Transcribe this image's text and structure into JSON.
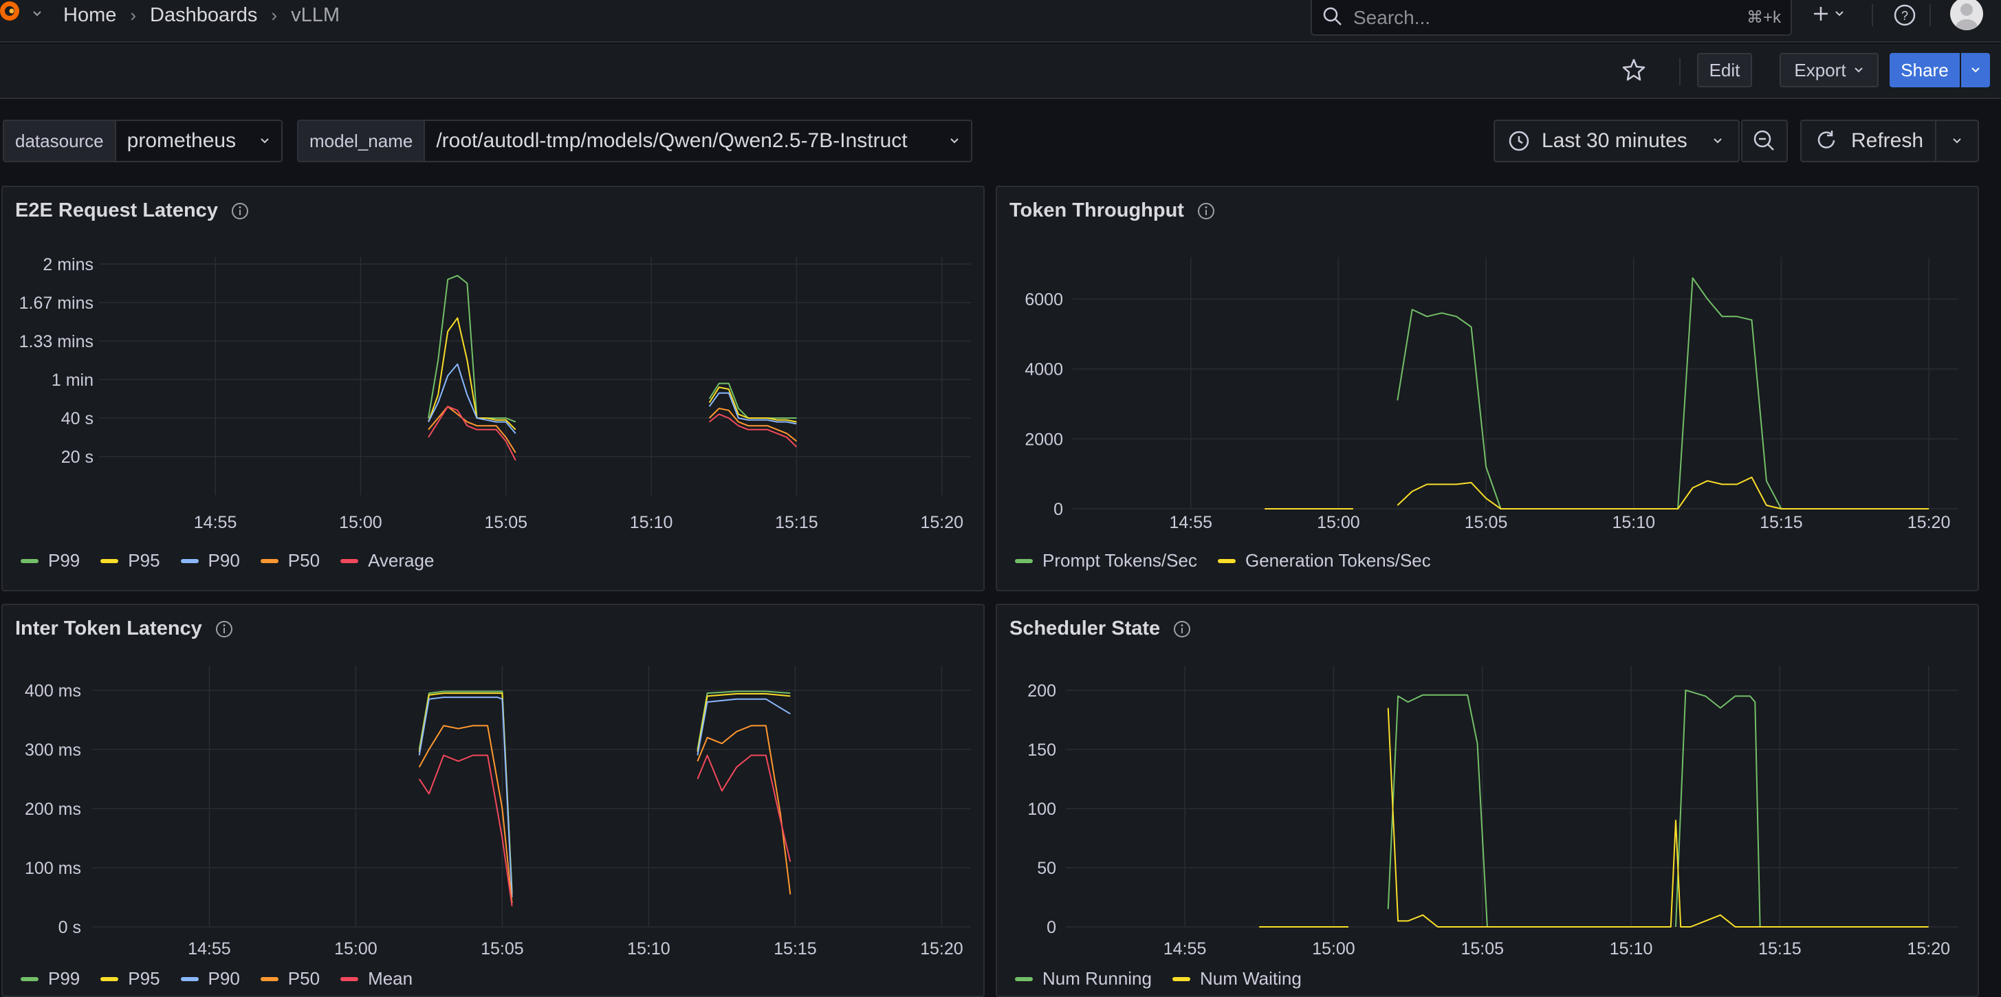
{
  "nav": {
    "breadcrumbs": [
      "Home",
      "Dashboards",
      "vLLM"
    ],
    "search_placeholder": "Search...",
    "search_shortcut": "⌘+k"
  },
  "toolbar": {
    "edit": "Edit",
    "export": "Export",
    "share": "Share"
  },
  "variables": [
    {
      "label": "datasource",
      "value": "prometheus"
    },
    {
      "label": "model_name",
      "value": "/root/autodl-tmp/models/Qwen/Qwen2.5-7B-Instruct"
    }
  ],
  "timepicker": {
    "range": "Last 30 minutes",
    "refresh": "Refresh"
  },
  "colors": {
    "green": "#73bf69",
    "yellow": "#fade2a",
    "blue": "#8ab8ff",
    "orange": "#ff9830",
    "red": "#f2495c",
    "accent": "#3d71d9"
  },
  "panels": [
    {
      "title": "E2E Request Latency",
      "legend": [
        "P99",
        "P95",
        "P90",
        "P50",
        "Average"
      ]
    },
    {
      "title": "Token Throughput",
      "legend": [
        "Prompt Tokens/Sec",
        "Generation Tokens/Sec"
      ]
    },
    {
      "title": "Inter Token Latency",
      "legend": [
        "P99",
        "P95",
        "P90",
        "P50",
        "Mean"
      ]
    },
    {
      "title": "Scheduler State",
      "legend": [
        "Num Running",
        "Num Waiting"
      ]
    }
  ],
  "chart_data": [
    {
      "type": "line",
      "title": "E2E Request Latency",
      "unit": "seconds",
      "x_ticks": [
        "14:55",
        "15:00",
        "15:05",
        "15:10",
        "15:15",
        "15:20"
      ],
      "y_tick_labels": [
        "20 s",
        "40 s",
        "1 min",
        "1.33 mins",
        "1.67 mins",
        "2 mins"
      ],
      "ylim": [
        0,
        120
      ],
      "series": [
        {
          "name": "P99",
          "color": "#73bf69",
          "x": [
            "15:02:20",
            "15:02:40",
            "15:03:00",
            "15:03:20",
            "15:03:40",
            "15:04:00",
            "15:04:20",
            "15:04:40",
            "15:05:00",
            "15:05:20",
            null,
            "15:12:00",
            "15:12:20",
            "15:12:40",
            "15:13:00",
            "15:13:20",
            "15:13:40",
            "15:14:00",
            "15:14:20",
            "15:14:40",
            "15:15:00"
          ],
          "y": [
            40,
            70,
            112,
            114,
            110,
            40,
            40,
            40,
            40,
            38,
            null,
            50,
            58,
            58,
            45,
            40,
            40,
            40,
            40,
            40,
            40
          ]
        },
        {
          "name": "P95",
          "color": "#fade2a",
          "x": [
            "15:02:20",
            "15:02:40",
            "15:03:00",
            "15:03:20",
            "15:03:40",
            "15:04:00",
            "15:04:20",
            "15:04:40",
            "15:05:00",
            "15:05:20",
            null,
            "15:12:00",
            "15:12:20",
            "15:12:40",
            "15:13:00",
            "15:13:20",
            "15:13:40",
            "15:14:00",
            "15:14:20",
            "15:14:40",
            "15:15:00"
          ],
          "y": [
            38,
            52,
            85,
            92,
            70,
            40,
            40,
            39,
            39,
            34,
            null,
            48,
            56,
            55,
            42,
            40,
            40,
            40,
            39,
            39,
            38
          ]
        },
        {
          "name": "P90",
          "color": "#8ab8ff",
          "x": [
            "15:02:20",
            "15:02:40",
            "15:03:00",
            "15:03:20",
            "15:03:40",
            "15:04:00",
            "15:04:20",
            "15:04:40",
            "15:05:00",
            "15:05:20",
            null,
            "15:12:00",
            "15:12:20",
            "15:12:40",
            "15:13:00",
            "15:13:20",
            "15:13:40",
            "15:14:00",
            "15:14:20",
            "15:14:40",
            "15:15:00"
          ],
          "y": [
            38,
            48,
            62,
            68,
            52,
            40,
            39,
            38,
            38,
            32,
            null,
            46,
            53,
            53,
            40,
            39,
            39,
            39,
            38,
            38,
            37
          ]
        },
        {
          "name": "P50",
          "color": "#ff9830",
          "x": [
            "15:02:20",
            "15:02:40",
            "15:03:00",
            "15:03:20",
            "15:03:40",
            "15:04:00",
            "15:04:20",
            "15:04:40",
            "15:05:00",
            "15:05:20",
            null,
            "15:12:00",
            "15:12:20",
            "15:12:40",
            "15:13:00",
            "15:13:20",
            "15:13:40",
            "15:14:00",
            "15:14:20",
            "15:14:40",
            "15:15:00"
          ],
          "y": [
            34,
            40,
            46,
            42,
            38,
            36,
            36,
            36,
            30,
            22,
            null,
            40,
            45,
            44,
            38,
            36,
            36,
            36,
            34,
            32,
            28
          ]
        },
        {
          "name": "Average",
          "color": "#f2495c",
          "x": [
            "15:02:20",
            "15:02:40",
            "15:03:00",
            "15:03:20",
            "15:03:40",
            "15:04:00",
            "15:04:20",
            "15:04:40",
            "15:05:00",
            "15:05:20",
            null,
            "15:12:00",
            "15:12:20",
            "15:12:40",
            "15:13:00",
            "15:13:20",
            "15:13:40",
            "15:14:00",
            "15:14:20",
            "15:14:40",
            "15:15:00"
          ],
          "y": [
            30,
            38,
            46,
            44,
            36,
            34,
            34,
            34,
            28,
            18,
            null,
            38,
            42,
            40,
            36,
            34,
            34,
            34,
            32,
            30,
            25
          ]
        }
      ]
    },
    {
      "type": "line",
      "title": "Token Throughput",
      "x_ticks": [
        "14:55",
        "15:00",
        "15:05",
        "15:10",
        "15:15",
        "15:20"
      ],
      "y_ticks": [
        0,
        2000,
        4000,
        6000
      ],
      "ylim": [
        0,
        7000
      ],
      "series": [
        {
          "name": "Prompt Tokens/Sec",
          "color": "#73bf69",
          "x": [
            "15:02:00",
            "15:02:30",
            "15:03:00",
            "15:03:30",
            "15:04:00",
            "15:04:30",
            "15:05:00",
            "15:05:30",
            null,
            "15:11:30",
            "15:12:00",
            "15:12:30",
            "15:13:00",
            "15:13:30",
            "15:14:00",
            "15:14:30",
            "15:15:00"
          ],
          "y": [
            3100,
            5700,
            5500,
            5600,
            5500,
            5200,
            1200,
            0,
            null,
            0,
            6600,
            6000,
            5500,
            5500,
            5400,
            800,
            0
          ]
        },
        {
          "name": "Generation Tokens/Sec",
          "color": "#fade2a",
          "x": [
            "14:57:30",
            "15:00:30",
            null,
            "15:02:00",
            "15:02:30",
            "15:03:00",
            "15:03:30",
            "15:04:00",
            "15:04:30",
            "15:05:00",
            "15:05:30",
            "15:10:00",
            "15:11:30",
            "15:12:00",
            "15:12:30",
            "15:13:00",
            "15:13:30",
            "15:14:00",
            "15:14:30",
            "15:15:00",
            "15:20:00"
          ],
          "y": [
            0,
            0,
            null,
            100,
            500,
            700,
            700,
            700,
            750,
            300,
            0,
            0,
            0,
            600,
            800,
            700,
            700,
            900,
            100,
            0,
            0
          ]
        }
      ]
    },
    {
      "type": "line",
      "title": "Inter Token Latency",
      "unit": "ms",
      "x_ticks": [
        "14:55",
        "15:00",
        "15:05",
        "15:10",
        "15:15",
        "15:20"
      ],
      "y_tick_labels": [
        "0 s",
        "100 ms",
        "200 ms",
        "300 ms",
        "400 ms"
      ],
      "ylim": [
        0,
        430
      ],
      "series": [
        {
          "name": "P99",
          "color": "#73bf69",
          "x": [
            "15:02:10",
            "15:02:30",
            "15:03:00",
            "15:04:00",
            "15:04:50",
            "15:05:00",
            "15:05:20",
            null,
            "15:11:40",
            "15:12:00",
            "15:13:00",
            "15:14:00",
            "15:14:50"
          ],
          "y": [
            300,
            395,
            398,
            398,
            398,
            398,
            60,
            null,
            300,
            395,
            398,
            398,
            395
          ]
        },
        {
          "name": "P95",
          "color": "#fade2a",
          "x": [
            "15:02:10",
            "15:02:30",
            "15:03:00",
            "15:04:00",
            "15:04:50",
            "15:05:00",
            "15:05:20",
            null,
            "15:11:40",
            "15:12:00",
            "15:13:00",
            "15:14:00",
            "15:14:50"
          ],
          "y": [
            295,
            392,
            395,
            395,
            395,
            395,
            55,
            null,
            296,
            390,
            394,
            394,
            390
          ]
        },
        {
          "name": "P90",
          "color": "#8ab8ff",
          "x": [
            "15:02:10",
            "15:02:30",
            "15:03:00",
            "15:04:00",
            "15:04:50",
            "15:05:00",
            "15:05:20",
            null,
            "15:11:40",
            "15:12:00",
            "15:13:00",
            "15:14:00",
            "15:14:50"
          ],
          "y": [
            290,
            385,
            388,
            388,
            388,
            385,
            50,
            null,
            290,
            380,
            385,
            385,
            360
          ]
        },
        {
          "name": "P50",
          "color": "#ff9830",
          "x": [
            "15:02:10",
            "15:02:30",
            "15:03:00",
            "15:03:30",
            "15:04:00",
            "15:04:30",
            "15:05:00",
            "15:05:20",
            null,
            "15:11:40",
            "15:12:00",
            "15:12:30",
            "15:13:00",
            "15:13:30",
            "15:14:00",
            "15:14:30",
            "15:14:50"
          ],
          "y": [
            270,
            300,
            340,
            335,
            340,
            340,
            200,
            40,
            null,
            280,
            320,
            310,
            330,
            340,
            340,
            190,
            55
          ]
        },
        {
          "name": "Mean",
          "color": "#f2495c",
          "x": [
            "15:02:10",
            "15:02:30",
            "15:03:00",
            "15:03:30",
            "15:04:00",
            "15:04:30",
            "15:05:00",
            "15:05:20",
            null,
            "15:11:40",
            "15:12:00",
            "15:12:30",
            "15:13:00",
            "15:13:30",
            "15:14:00",
            "15:14:30",
            "15:14:50"
          ],
          "y": [
            250,
            225,
            290,
            280,
            290,
            290,
            150,
            35,
            null,
            250,
            290,
            230,
            270,
            290,
            290,
            180,
            110
          ]
        }
      ]
    },
    {
      "type": "line",
      "title": "Scheduler State",
      "x_ticks": [
        "14:55",
        "15:00",
        "15:05",
        "15:10",
        "15:15",
        "15:20"
      ],
      "y_ticks": [
        0,
        50,
        100,
        150,
        200
      ],
      "ylim": [
        0,
        215
      ],
      "series": [
        {
          "name": "Num Running",
          "color": "#73bf69",
          "x": [
            "15:01:50",
            "15:02:10",
            "15:02:30",
            "15:03:00",
            "15:04:30",
            "15:04:50",
            "15:05:10",
            null,
            "15:11:30",
            "15:11:50",
            "15:12:30",
            "15:13:00",
            "15:13:30",
            "15:14:00",
            "15:14:10",
            "15:14:20"
          ],
          "y": [
            15,
            195,
            190,
            196,
            196,
            155,
            0,
            null,
            0,
            200,
            195,
            185,
            195,
            195,
            190,
            0
          ]
        },
        {
          "name": "Num Waiting",
          "color": "#fade2a",
          "x": [
            "14:57:30",
            "15:00:30",
            null,
            "15:01:50",
            "15:02:10",
            "15:02:30",
            "15:03:00",
            "15:03:30",
            "15:04:00",
            "15:05:00",
            "15:11:20",
            "15:11:30",
            "15:11:40",
            "15:12:00",
            "15:12:30",
            "15:13:00",
            "15:13:30",
            "15:14:00",
            "15:15:00",
            "15:20:00"
          ],
          "y": [
            0,
            0,
            null,
            185,
            5,
            5,
            10,
            0,
            0,
            0,
            0,
            90,
            0,
            0,
            5,
            10,
            0,
            0,
            0,
            0
          ]
        }
      ]
    }
  ]
}
